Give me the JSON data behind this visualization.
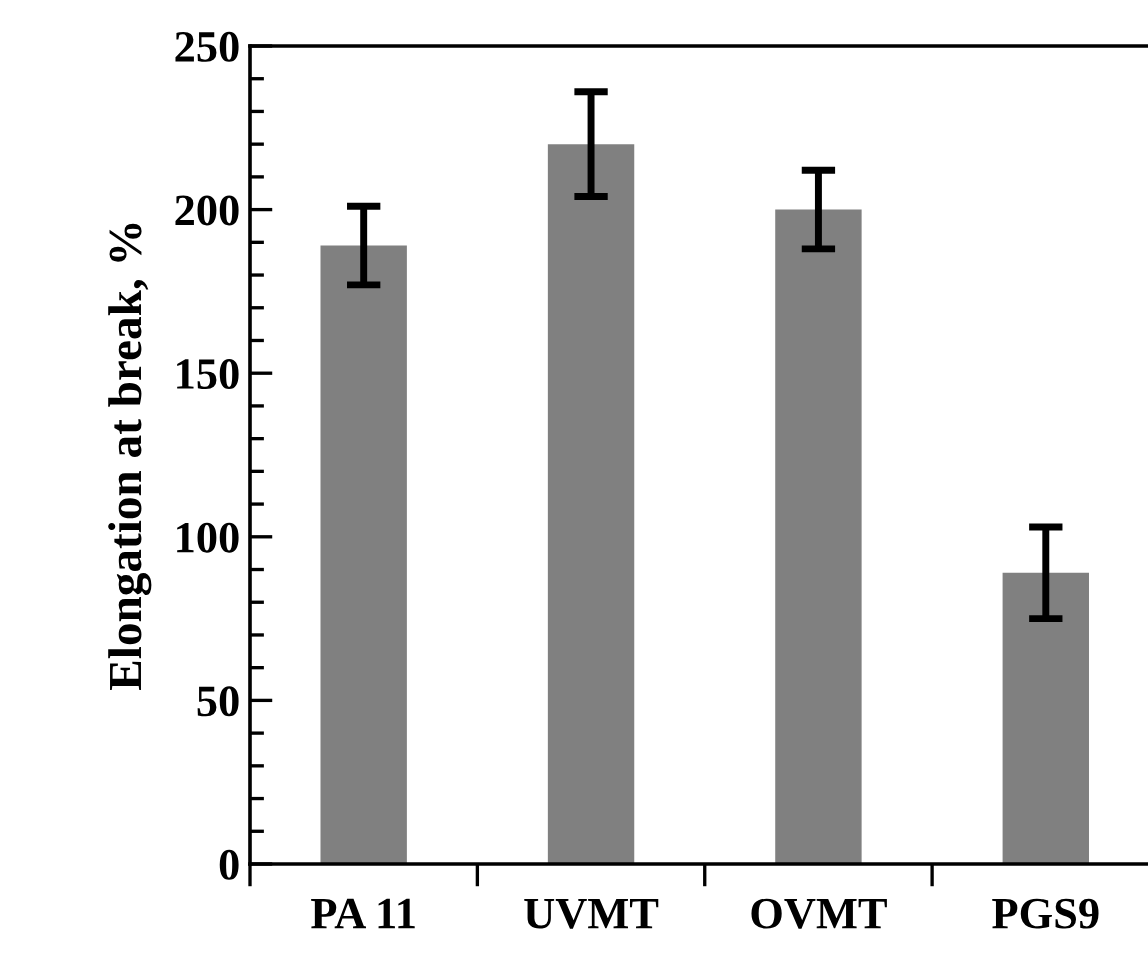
{
  "chart_data": {
    "type": "bar",
    "ylabel": "Elongation at break, %",
    "categories": [
      "PA 11",
      "UVMT",
      "OVMT",
      "PGS9"
    ],
    "values": [
      189,
      220,
      200,
      89
    ],
    "errors": [
      12,
      16,
      12,
      14
    ],
    "color": "#808080",
    "ylim": [
      0,
      250
    ],
    "yticks": [
      0,
      50,
      100,
      150,
      200,
      250
    ],
    "grid": false
  }
}
